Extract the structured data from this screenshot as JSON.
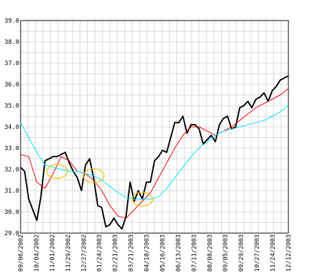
{
  "chart_data": {
    "type": "line",
    "ylim": [
      29.0,
      39.0
    ],
    "y_ticks": [
      "29.0",
      "30.0",
      "31.0",
      "32.0",
      "33.0",
      "34.0",
      "35.0",
      "36.0",
      "37.0",
      "38.0",
      "39.0"
    ],
    "x_tick_labels": [
      "09/06/2002",
      "10/04/2002",
      "11/01/2002",
      "11/29/2002",
      "12/27/2002",
      "01/24/2003",
      "02/21/2003",
      "03/21/2003",
      "04/18/2003",
      "05/16/2003",
      "06/13/2003",
      "07/11/2003",
      "08/08/2003",
      "09/05/2003",
      "09/29/2003",
      "10/27/2003",
      "11/24/2003",
      "12/12/2003"
    ],
    "x_range_weeks": [
      0,
      66
    ],
    "grid": true,
    "series": [
      {
        "color": "#000000",
        "x": [
          0,
          1,
          2,
          3,
          4,
          5,
          6,
          7,
          8,
          9,
          10,
          11,
          12,
          13,
          14,
          15,
          16,
          17,
          18,
          19,
          20,
          21,
          22,
          23,
          24,
          25,
          26,
          27,
          28,
          29,
          30,
          31,
          32,
          33,
          34,
          35,
          36,
          37,
          38,
          39,
          40,
          41,
          42,
          43,
          44,
          45,
          46,
          47,
          48,
          49,
          50,
          51,
          52,
          53,
          54,
          55,
          56,
          57,
          58,
          59,
          60,
          61,
          62,
          63,
          64,
          65,
          66
        ],
        "values": [
          32.1,
          31.9,
          30.6,
          30.1,
          29.6,
          30.7,
          32.4,
          32.5,
          32.6,
          32.6,
          32.7,
          32.8,
          32.3,
          31.9,
          31.6,
          31.0,
          32.2,
          32.5,
          31.6,
          30.3,
          30.2,
          29.3,
          29.4,
          29.7,
          29.4,
          29.2,
          29.8,
          31.4,
          30.5,
          31.0,
          30.6,
          31.4,
          31.4,
          32.4,
          32.6,
          32.9,
          32.8,
          33.5,
          34.2,
          34.2,
          34.5,
          33.7,
          34.1,
          34.1,
          33.9,
          33.2,
          33.4,
          33.6,
          33.3,
          34.1,
          34.4,
          34.5,
          33.9,
          34.0,
          34.9,
          35.0,
          35.2,
          34.9,
          35.3,
          35.4,
          35.6,
          35.2,
          35.7,
          35.9,
          36.2,
          36.3,
          36.4
        ]
      },
      {
        "color": "#e00000",
        "x": [
          0,
          2,
          4,
          6,
          8,
          10,
          12,
          14,
          16,
          18,
          20,
          22,
          24,
          26,
          28,
          30,
          32,
          34,
          36,
          38,
          40,
          42,
          44,
          46,
          48,
          50,
          52,
          54,
          56,
          58,
          60,
          62,
          64,
          66
        ],
        "values": [
          32.7,
          32.6,
          31.4,
          31.1,
          31.8,
          32.6,
          32.4,
          31.9,
          31.8,
          31.5,
          31.0,
          30.3,
          29.8,
          29.7,
          30.1,
          30.5,
          30.9,
          31.6,
          32.3,
          33.0,
          33.6,
          34.0,
          34.0,
          33.8,
          33.6,
          33.8,
          34.0,
          34.3,
          34.6,
          34.9,
          35.1,
          35.3,
          35.5,
          35.8
        ]
      },
      {
        "color": "#00e0f0",
        "x": [
          0,
          2,
          4,
          6,
          8,
          10,
          12,
          14,
          16,
          18,
          20,
          22,
          24,
          26,
          28,
          30,
          32,
          34,
          36,
          38,
          40,
          42,
          44,
          46,
          48,
          50,
          52,
          54,
          56,
          58,
          60,
          62,
          64,
          66
        ],
        "values": [
          34.2,
          33.5,
          32.8,
          32.2,
          32.1,
          32.0,
          31.9,
          31.9,
          31.8,
          31.7,
          31.5,
          31.2,
          30.9,
          30.7,
          30.6,
          30.6,
          30.6,
          30.7,
          31.1,
          31.6,
          32.1,
          32.6,
          33.0,
          33.3,
          33.6,
          33.8,
          33.9,
          34.0,
          34.1,
          34.2,
          34.3,
          34.5,
          34.7,
          35.0
        ]
      }
    ],
    "highlights": [
      {
        "color": "#f0c000",
        "x": 9,
        "y": 31.9
      },
      {
        "color": "#f0c000",
        "x": 18,
        "y": 31.7
      },
      {
        "color": "#f0c000",
        "x": 30,
        "y": 30.6
      }
    ]
  }
}
